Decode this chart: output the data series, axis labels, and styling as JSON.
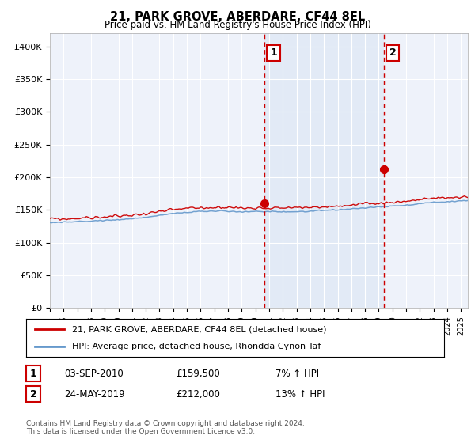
{
  "title": "21, PARK GROVE, ABERDARE, CF44 8EL",
  "subtitle": "Price paid vs. HM Land Registry's House Price Index (HPI)",
  "ylabel_ticks": [
    "£0",
    "£50K",
    "£100K",
    "£150K",
    "£200K",
    "£250K",
    "£300K",
    "£350K",
    "£400K"
  ],
  "ytick_values": [
    0,
    50000,
    100000,
    150000,
    200000,
    250000,
    300000,
    350000,
    400000
  ],
  "ylim": [
    0,
    420000
  ],
  "xlim_start": 1995.0,
  "xlim_end": 2025.5,
  "red_color": "#cc0000",
  "blue_color": "#6699cc",
  "shade_color": "#dde8f5",
  "marker1_x": 2010.67,
  "marker2_x": 2019.38,
  "marker1_y": 159500,
  "marker2_y": 212000,
  "legend_line1": "21, PARK GROVE, ABERDARE, CF44 8EL (detached house)",
  "legend_line2": "HPI: Average price, detached house, Rhondda Cynon Taf",
  "table_row1": [
    "1",
    "03-SEP-2010",
    "£159,500",
    "7% ↑ HPI"
  ],
  "table_row2": [
    "2",
    "24-MAY-2019",
    "£212,000",
    "13% ↑ HPI"
  ],
  "footer": "Contains HM Land Registry data © Crown copyright and database right 2024.\nThis data is licensed under the Open Government Licence v3.0.",
  "bg_color": "#ffffff",
  "plot_bg_color": "#eef2fa",
  "grid_color": "#ffffff"
}
